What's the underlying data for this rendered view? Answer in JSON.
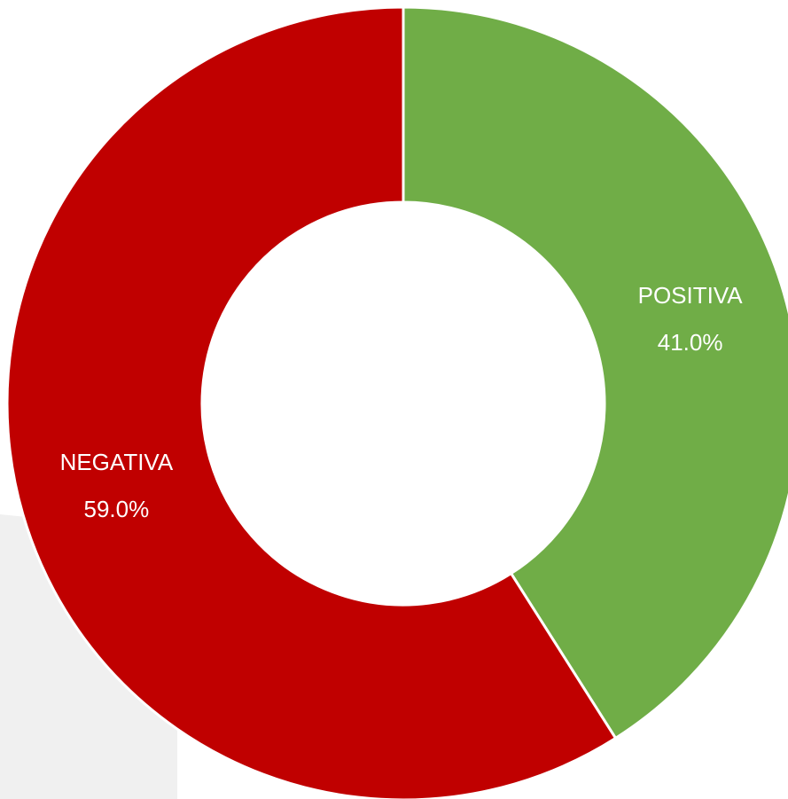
{
  "chart_data": {
    "type": "donut",
    "categories": [
      "POSITIVA",
      "NEGATIVA"
    ],
    "values": [
      41.0,
      59.0
    ],
    "value_labels": [
      "41.0%",
      "59.0%"
    ],
    "colors": [
      "#70ad47",
      "#c00000"
    ]
  }
}
